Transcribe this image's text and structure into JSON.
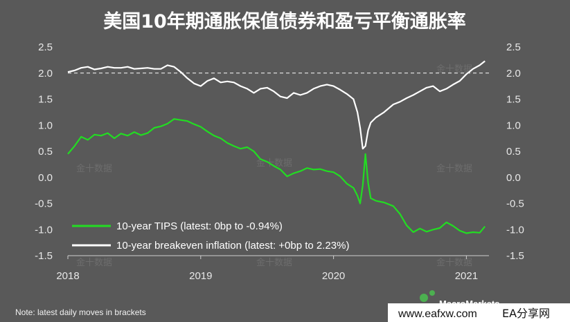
{
  "chart_data": {
    "type": "line",
    "title": "美国10年期通胀保值债券和盈亏平衡通胀率",
    "xlabel": "",
    "ylabel": "",
    "x_ticks": [
      "2018",
      "2019",
      "2020",
      "2021"
    ],
    "y_ticks": [
      "2.5",
      "2.0",
      "1.5",
      "1.0",
      "0.5",
      "0.0",
      "-0.5",
      "-1.0",
      "-1.5"
    ],
    "ylim": [
      -1.5,
      2.5
    ],
    "xlim": [
      2018.0,
      2021.17
    ],
    "reference_line": 2.0,
    "grid": false,
    "legend_position": "bottom-left",
    "series": [
      {
        "name": "10-year TIPS (latest: 0bp to -0.94%)",
        "color": "#22dd22",
        "x": [
          2018.0,
          2018.05,
          2018.1,
          2018.15,
          2018.2,
          2018.25,
          2018.3,
          2018.35,
          2018.4,
          2018.45,
          2018.5,
          2018.55,
          2018.6,
          2018.65,
          2018.7,
          2018.75,
          2018.8,
          2018.85,
          2018.9,
          2018.95,
          2019.0,
          2019.05,
          2019.1,
          2019.15,
          2019.2,
          2019.25,
          2019.3,
          2019.35,
          2019.4,
          2019.45,
          2019.5,
          2019.55,
          2019.6,
          2019.65,
          2019.7,
          2019.75,
          2019.8,
          2019.85,
          2019.9,
          2019.95,
          2020.0,
          2020.05,
          2020.1,
          2020.15,
          2020.18,
          2020.2,
          2020.22,
          2020.24,
          2020.26,
          2020.28,
          2020.32,
          2020.38,
          2020.45,
          2020.5,
          2020.55,
          2020.6,
          2020.65,
          2020.7,
          2020.75,
          2020.8,
          2020.85,
          2020.9,
          2020.95,
          2021.0,
          2021.05,
          2021.1,
          2021.14
        ],
        "values": [
          0.45,
          0.6,
          0.78,
          0.72,
          0.82,
          0.8,
          0.85,
          0.75,
          0.84,
          0.8,
          0.87,
          0.81,
          0.85,
          0.95,
          0.98,
          1.03,
          1.12,
          1.1,
          1.08,
          1.02,
          0.97,
          0.88,
          0.8,
          0.75,
          0.66,
          0.6,
          0.55,
          0.58,
          0.5,
          0.35,
          0.3,
          0.22,
          0.15,
          0.02,
          0.08,
          0.12,
          0.18,
          0.15,
          0.16,
          0.12,
          0.1,
          0.02,
          -0.12,
          -0.2,
          -0.35,
          -0.5,
          -0.15,
          0.45,
          -0.1,
          -0.4,
          -0.45,
          -0.48,
          -0.55,
          -0.7,
          -0.92,
          -1.05,
          -0.98,
          -1.04,
          -1.0,
          -0.97,
          -0.86,
          -0.93,
          -1.02,
          -1.07,
          -1.05,
          -1.06,
          -0.94
        ]
      },
      {
        "name": "10-year breakeven inflation (latest: +0bp to 2.23%)",
        "color": "#ffffff",
        "x": [
          2018.0,
          2018.05,
          2018.1,
          2018.15,
          2018.2,
          2018.25,
          2018.3,
          2018.35,
          2018.4,
          2018.45,
          2018.5,
          2018.55,
          2018.6,
          2018.65,
          2018.7,
          2018.75,
          2018.8,
          2018.85,
          2018.9,
          2018.95,
          2019.0,
          2019.05,
          2019.1,
          2019.15,
          2019.2,
          2019.25,
          2019.3,
          2019.35,
          2019.4,
          2019.45,
          2019.5,
          2019.55,
          2019.6,
          2019.65,
          2019.7,
          2019.75,
          2019.8,
          2019.85,
          2019.9,
          2019.95,
          2020.0,
          2020.05,
          2020.1,
          2020.15,
          2020.18,
          2020.2,
          2020.22,
          2020.24,
          2020.26,
          2020.28,
          2020.32,
          2020.38,
          2020.45,
          2020.5,
          2020.55,
          2020.6,
          2020.65,
          2020.7,
          2020.75,
          2020.8,
          2020.85,
          2020.9,
          2020.95,
          2021.0,
          2021.05,
          2021.1,
          2021.14
        ],
        "values": [
          2.02,
          2.05,
          2.1,
          2.12,
          2.07,
          2.09,
          2.12,
          2.1,
          2.1,
          2.12,
          2.08,
          2.09,
          2.1,
          2.08,
          2.08,
          2.15,
          2.12,
          2.02,
          1.9,
          1.8,
          1.75,
          1.85,
          1.9,
          1.82,
          1.84,
          1.82,
          1.75,
          1.7,
          1.62,
          1.7,
          1.72,
          1.65,
          1.55,
          1.52,
          1.62,
          1.58,
          1.62,
          1.7,
          1.75,
          1.78,
          1.75,
          1.68,
          1.6,
          1.5,
          1.25,
          0.95,
          0.55,
          0.6,
          0.9,
          1.05,
          1.15,
          1.25,
          1.4,
          1.45,
          1.52,
          1.58,
          1.65,
          1.72,
          1.75,
          1.65,
          1.7,
          1.78,
          1.85,
          1.98,
          2.08,
          2.15,
          2.23
        ]
      }
    ],
    "note": "Note: latest daily moves in brackets",
    "source_logo": "MacroMarkets",
    "watermark": "金十数据",
    "site_mark": "www.eafxw.com",
    "site_brand": "EA分享网"
  }
}
